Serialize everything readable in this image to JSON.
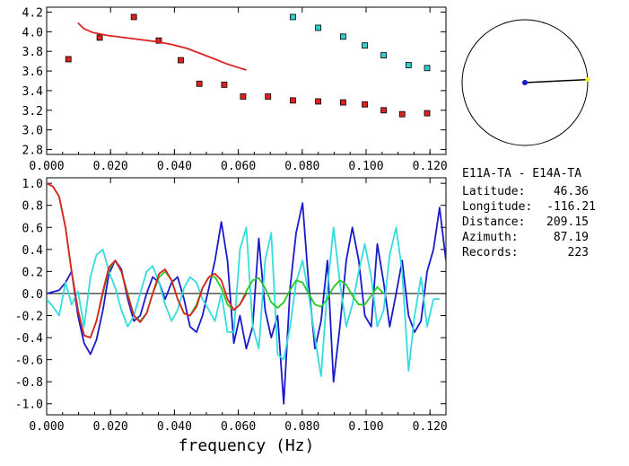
{
  "chart_data": [
    {
      "type": "scatter",
      "title": "",
      "xlabel": "",
      "ylabel": "",
      "xlim": [
        0.0,
        0.125
      ],
      "ylim": [
        2.75,
        4.25
      ],
      "x_ticks": [
        0.0,
        0.02,
        0.04,
        0.06,
        0.08,
        0.1,
        0.12
      ],
      "x_tick_labels": [
        "0.000",
        "0.020",
        "0.040",
        "0.060",
        "0.080",
        "0.100",
        "0.120"
      ],
      "y_ticks": [
        2.8,
        3.0,
        3.2,
        3.4,
        3.6,
        3.8,
        4.0,
        4.2
      ],
      "y_tick_labels": [
        "2.8",
        "3.0",
        "3.2",
        "3.4",
        "3.6",
        "3.8",
        "4.0",
        "4.2"
      ],
      "grid": false,
      "series": [
        {
          "kind": "markers",
          "color": "#dd2222",
          "x": [
            0.0068,
            0.0166,
            0.0273,
            0.0351,
            0.042,
            0.0478,
            0.0556,
            0.0615,
            0.0693,
            0.0771,
            0.085,
            0.0928,
            0.0996,
            0.1055,
            0.1113,
            0.1191
          ],
          "y": [
            3.72,
            3.94,
            4.15,
            3.91,
            3.71,
            3.47,
            3.46,
            3.34,
            3.34,
            3.3,
            3.29,
            3.28,
            3.26,
            3.2,
            3.16,
            3.17
          ]
        },
        {
          "kind": "markers",
          "color": "#33cccc",
          "x": [
            0.0771,
            0.085,
            0.0928,
            0.0996,
            0.1055,
            0.1133,
            0.1191
          ],
          "y": [
            4.15,
            4.04,
            3.95,
            3.86,
            3.76,
            3.66,
            3.63
          ]
        },
        {
          "kind": "line",
          "color": "#dd2222",
          "x": [
            0.0098,
            0.0117,
            0.0146,
            0.0195,
            0.0244,
            0.0293,
            0.0342,
            0.0391,
            0.0439,
            0.0488,
            0.0527,
            0.0566,
            0.0605,
            0.0625
          ],
          "y": [
            4.09,
            4.03,
            3.99,
            3.96,
            3.94,
            3.92,
            3.9,
            3.87,
            3.83,
            3.77,
            3.72,
            3.67,
            3.63,
            3.61
          ]
        }
      ]
    },
    {
      "type": "line",
      "title": "",
      "xlabel": "frequency (Hz)",
      "ylabel": "",
      "xlim": [
        0.0,
        0.125
      ],
      "ylim": [
        -1.1,
        1.05
      ],
      "x_ticks": [
        0.0,
        0.02,
        0.04,
        0.06,
        0.08,
        0.1,
        0.12
      ],
      "x_tick_labels": [
        "0.000",
        "0.020",
        "0.040",
        "0.060",
        "0.080",
        "0.100",
        "0.120"
      ],
      "y_ticks": [
        -1.0,
        -0.8,
        -0.6,
        -0.4,
        -0.2,
        0.0,
        0.2,
        0.4,
        0.6,
        0.8,
        1.0
      ],
      "y_tick_labels": [
        "-1.0",
        "-0.8",
        "-0.6",
        "-0.4",
        "-0.2",
        "0.0",
        "0.2",
        "0.4",
        "0.6",
        "0.8",
        "1.0"
      ],
      "zero_line": true,
      "grid": false,
      "series": [
        {
          "color": "#1a1acc",
          "x": [
            0.0,
            0.0039,
            0.0059,
            0.0078,
            0.0098,
            0.0117,
            0.0137,
            0.0156,
            0.0176,
            0.0195,
            0.0215,
            0.0234,
            0.0254,
            0.0273,
            0.0293,
            0.0313,
            0.0332,
            0.0352,
            0.0371,
            0.0391,
            0.041,
            0.043,
            0.0449,
            0.0469,
            0.0488,
            0.0508,
            0.0527,
            0.0547,
            0.0566,
            0.0586,
            0.0605,
            0.0625,
            0.0645,
            0.0664,
            0.0684,
            0.0703,
            0.0723,
            0.0742,
            0.0762,
            0.0781,
            0.0801,
            0.082,
            0.084,
            0.0859,
            0.0879,
            0.0898,
            0.0918,
            0.0938,
            0.0957,
            0.0977,
            0.0996,
            0.1016,
            0.1035,
            0.1055,
            0.1074,
            0.1094,
            0.1113,
            0.1133,
            0.1152,
            0.1172,
            0.1191,
            0.1211,
            0.123,
            0.125
          ],
          "y": [
            0.0,
            0.03,
            0.1,
            0.2,
            -0.2,
            -0.45,
            -0.55,
            -0.42,
            -0.15,
            0.18,
            0.3,
            0.22,
            -0.05,
            -0.25,
            -0.2,
            0.0,
            0.15,
            0.1,
            -0.05,
            0.1,
            0.15,
            -0.05,
            -0.3,
            -0.35,
            -0.2,
            0.05,
            0.3,
            0.65,
            0.3,
            -0.45,
            -0.2,
            -0.5,
            -0.3,
            0.5,
            -0.15,
            -0.4,
            -0.2,
            -1.0,
            0.05,
            0.55,
            0.82,
            0.1,
            -0.5,
            -0.25,
            0.3,
            -0.8,
            -0.3,
            0.3,
            0.6,
            0.3,
            -0.2,
            -0.3,
            0.45,
            0.1,
            -0.3,
            0.0,
            0.3,
            -0.2,
            -0.35,
            -0.25,
            0.2,
            0.4,
            0.78,
            0.3
          ]
        },
        {
          "color": "#33dddd",
          "x": [
            0.0,
            0.002,
            0.0039,
            0.0059,
            0.0078,
            0.0098,
            0.0117,
            0.0137,
            0.0156,
            0.0176,
            0.0195,
            0.0215,
            0.0234,
            0.0254,
            0.0273,
            0.0293,
            0.0313,
            0.0332,
            0.0352,
            0.0371,
            0.0391,
            0.041,
            0.043,
            0.0449,
            0.0469,
            0.0488,
            0.0508,
            0.0527,
            0.0547,
            0.0566,
            0.0586,
            0.0605,
            0.0625,
            0.0645,
            0.0664,
            0.0684,
            0.0703,
            0.0723,
            0.0742,
            0.0762,
            0.0781,
            0.0801,
            0.082,
            0.084,
            0.0859,
            0.0879,
            0.0898,
            0.0918,
            0.0938,
            0.0957,
            0.0977,
            0.0996,
            0.1016,
            0.1035,
            0.1055,
            0.1074,
            0.1094,
            0.1113,
            0.1133,
            0.1152,
            0.1172,
            0.1191,
            0.1211,
            0.123
          ],
          "y": [
            -0.05,
            -0.12,
            -0.2,
            0.1,
            -0.1,
            0.02,
            -0.3,
            0.15,
            0.35,
            0.4,
            0.2,
            0.05,
            -0.15,
            -0.3,
            -0.2,
            0.0,
            0.2,
            0.25,
            0.1,
            -0.1,
            -0.25,
            -0.15,
            0.05,
            0.15,
            0.1,
            -0.05,
            -0.15,
            -0.25,
            0.0,
            -0.35,
            -0.35,
            0.4,
            0.6,
            -0.3,
            -0.5,
            0.3,
            0.55,
            -0.55,
            -0.6,
            -0.3,
            0.1,
            0.3,
            0.0,
            -0.4,
            -0.75,
            0.05,
            0.6,
            0.1,
            -0.3,
            -0.1,
            0.2,
            0.45,
            0.15,
            -0.3,
            -0.15,
            0.35,
            0.6,
            0.2,
            -0.7,
            -0.2,
            0.15,
            -0.3,
            -0.05,
            -0.05
          ]
        },
        {
          "color": "#22cc22",
          "x": [
            0.0,
            0.002,
            0.0039,
            0.0059,
            0.0078,
            0.0098,
            0.0117,
            0.0137,
            0.0156,
            0.0176,
            0.0195,
            0.0215,
            0.0234,
            0.0254,
            0.0273,
            0.0293,
            0.0313,
            0.0332,
            0.0352,
            0.0371,
            0.0391,
            0.041,
            0.043,
            0.0449,
            0.0469,
            0.0488,
            0.0508,
            0.0527,
            0.0547,
            0.0566,
            0.0586,
            0.0605,
            0.0625,
            0.0645,
            0.0664,
            0.0684,
            0.0703,
            0.0723,
            0.0742,
            0.0762,
            0.0781,
            0.0801,
            0.082,
            0.084,
            0.0859,
            0.0879,
            0.0898,
            0.0918,
            0.0938,
            0.0957,
            0.0977,
            0.0996,
            0.1016,
            0.1035,
            0.1055
          ],
          "y": [
            1.0,
            0.97,
            0.88,
            0.6,
            0.2,
            -0.15,
            -0.38,
            -0.4,
            -0.25,
            0.0,
            0.22,
            0.3,
            0.2,
            0.0,
            -0.2,
            -0.25,
            -0.18,
            0.0,
            0.15,
            0.2,
            0.12,
            -0.05,
            -0.18,
            -0.2,
            -0.1,
            0.05,
            0.15,
            0.15,
            0.05,
            -0.1,
            -0.15,
            -0.1,
            0.02,
            0.12,
            0.14,
            0.05,
            -0.08,
            -0.13,
            -0.08,
            0.03,
            0.12,
            0.1,
            0.0,
            -0.1,
            -0.12,
            -0.05,
            0.06,
            0.12,
            0.08,
            -0.02,
            -0.1,
            -0.1,
            -0.02,
            0.06,
            0.0
          ]
        },
        {
          "color": "#dd2222",
          "x": [
            0.0,
            0.002,
            0.0039,
            0.0059,
            0.0078,
            0.0098,
            0.0117,
            0.0137,
            0.0156,
            0.0176,
            0.0195,
            0.0215,
            0.0234,
            0.0254,
            0.0273,
            0.0293,
            0.0313,
            0.0332,
            0.0352,
            0.0371,
            0.0391,
            0.041,
            0.043,
            0.0449,
            0.0469,
            0.0488,
            0.0508,
            0.0527,
            0.0547,
            0.0566,
            0.0586,
            0.0605,
            0.0625
          ],
          "y": [
            1.0,
            0.97,
            0.88,
            0.6,
            0.2,
            -0.15,
            -0.38,
            -0.4,
            -0.25,
            0.02,
            0.24,
            0.3,
            0.2,
            -0.02,
            -0.2,
            -0.26,
            -0.18,
            0.0,
            0.18,
            0.22,
            0.12,
            -0.05,
            -0.18,
            -0.2,
            -0.12,
            0.05,
            0.15,
            0.18,
            0.12,
            -0.05,
            -0.15,
            -0.1,
            0.0
          ]
        }
      ]
    }
  ],
  "station_info": {
    "pair": "E11A-TA - E14A-TA",
    "lines": [
      {
        "label": "Latitude:",
        "value": "46.36"
      },
      {
        "label": "Longitude:",
        "value": "-116.21"
      },
      {
        "label": "Distance:",
        "value": "209.15"
      },
      {
        "label": "Azimuth:",
        "value": "87.19"
      },
      {
        "label": "Records:",
        "value": "223"
      }
    ]
  },
  "azimuth_diagram": {
    "azimuth_deg": 87.19,
    "circle_color": "#000000",
    "center_marker_color": "#1a1acc",
    "end_marker_color": "#eeee22"
  }
}
